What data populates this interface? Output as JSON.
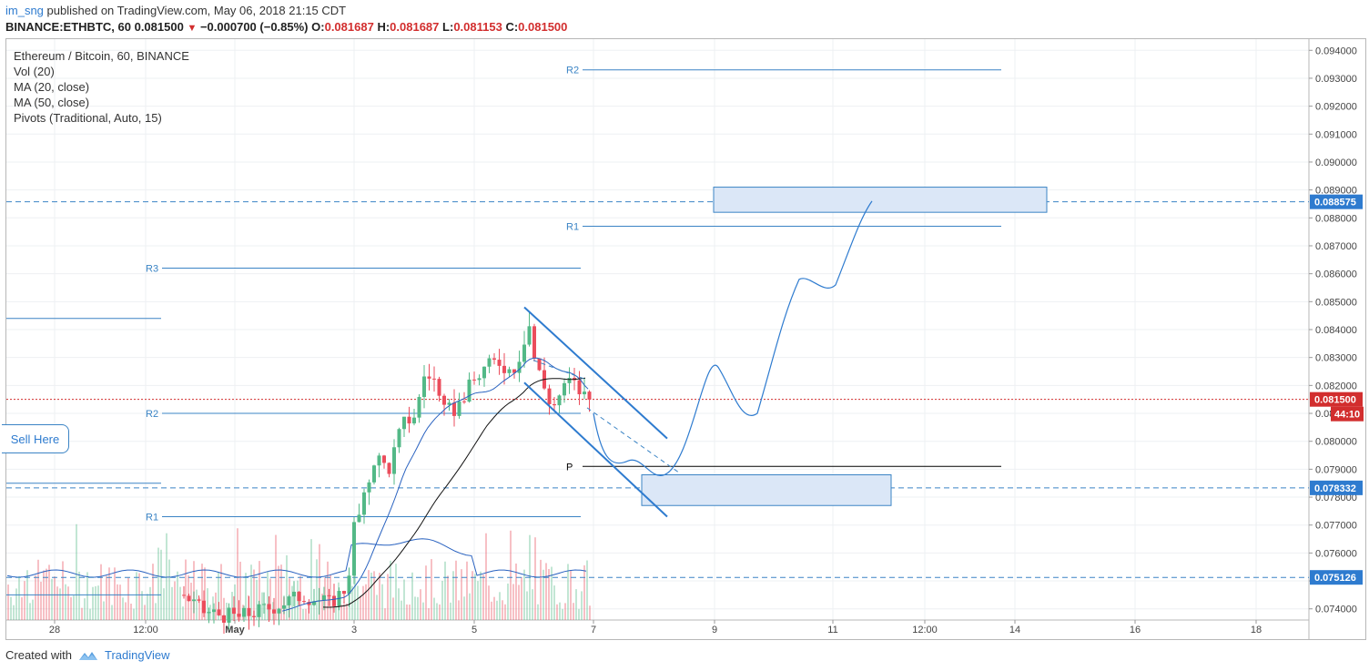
{
  "header": {
    "user": "im_sng",
    "published_text": "published on TradingView.com, May 06, 2018 21:15 CDT",
    "symbol": "BINANCE:ETHBTC, 60",
    "last": "0.081500",
    "change": "−0.000700 (−0.85%)",
    "o_label": "O:",
    "o_value": "0.081687",
    "h_label": "H:",
    "h_value": "0.081687",
    "l_label": "L:",
    "l_value": "0.081153",
    "c_label": "C:",
    "c_value": "0.081500"
  },
  "legend": {
    "title": "Ethereum / Bitcoin, 60, BINANCE",
    "vol": "Vol (20)",
    "ma20": "MA (20, close)",
    "ma50": "MA (50, close)",
    "pivots": "Pivots (Traditional, Auto, 15)"
  },
  "sell_label": "Sell Here",
  "footer": {
    "created_with": "Created with",
    "brand": "TradingView"
  },
  "colors": {
    "up": "#53b987",
    "down": "#eb4d5c",
    "pivot": "#3b84c5",
    "ma20": "#2962c0",
    "ma50": "#111111",
    "price_line": "#d22e2e",
    "box_fill": "#dbe7f7"
  },
  "chart_data": {
    "type": "candlestick",
    "ylim": [
      0.0736,
      0.0944
    ],
    "y_ticks": [
      "0.094000",
      "0.093000",
      "0.092000",
      "0.091000",
      "0.090000",
      "0.089000",
      "0.088000",
      "0.087000",
      "0.086000",
      "0.085000",
      "0.084000",
      "0.083000",
      "0.082000",
      "0.081000",
      "0.080000",
      "0.079000",
      "0.078000",
      "0.077000",
      "0.076000",
      "0.075000",
      "0.074000"
    ],
    "x_ticks": [
      "28",
      "12:00",
      "May",
      "3",
      "5",
      "7",
      "9",
      "11",
      "12:00",
      "14",
      "16",
      "18"
    ],
    "price_labels": [
      {
        "value": 0.088575,
        "label": "0.088575",
        "style": "blue"
      },
      {
        "value": 0.0815,
        "label": "0.081500",
        "style": "red"
      },
      {
        "value": 0.078332,
        "label": "0.078332",
        "style": "blue"
      },
      {
        "value": 0.075126,
        "label": "0.075126",
        "style": "blue"
      }
    ],
    "countdown": "44:10",
    "dashed_levels": [
      0.088575,
      0.078332,
      0.075126
    ],
    "pivot_levels": [
      {
        "label": "R2",
        "value": 0.0933,
        "period": "second"
      },
      {
        "label": "R1",
        "value": 0.0877,
        "period": "second"
      },
      {
        "label": "P",
        "value": 0.0791,
        "period": "second"
      },
      {
        "label": "R3",
        "value": 0.0862,
        "period": "first"
      },
      {
        "label": "R2",
        "value": 0.081,
        "period": "first"
      },
      {
        "label": "R1",
        "value": 0.0773,
        "period": "first"
      }
    ],
    "zones": [
      {
        "name": "target-zone",
        "y_top": 0.0891,
        "y_bottom": 0.0882
      },
      {
        "name": "buy-zone",
        "y_top": 0.0788,
        "y_bottom": 0.0777
      }
    ]
  }
}
